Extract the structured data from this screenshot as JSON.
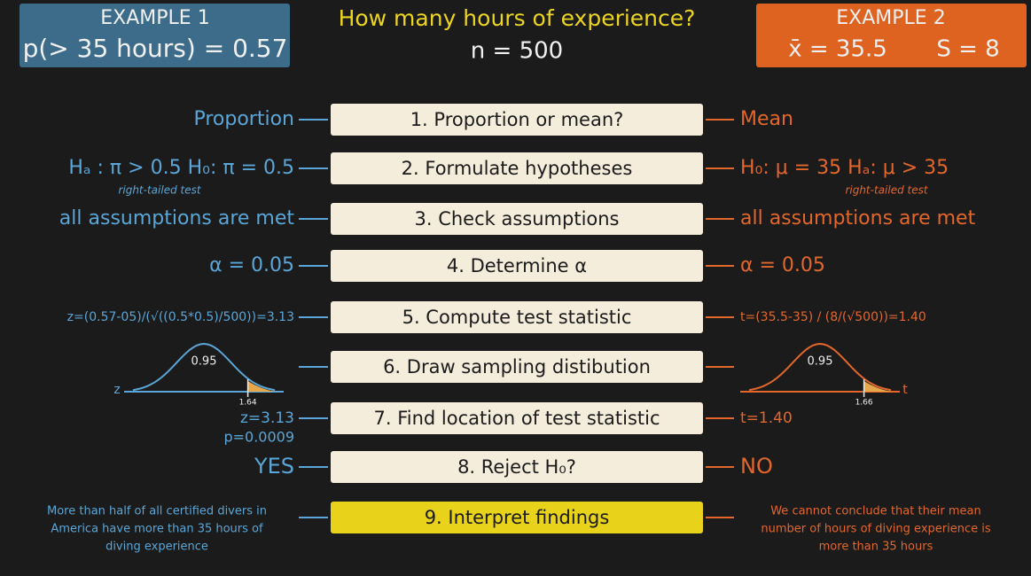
{
  "example1": {
    "label": "EXAMPLE 1",
    "value": "p(> 35 hours) = 0.57"
  },
  "title": {
    "question": "How many hours of experience?",
    "n": "n = 500"
  },
  "example2": {
    "label": "EXAMPLE 2",
    "mean": "x̄ = 35.5",
    "sd": "S = 8"
  },
  "steps": [
    {
      "label": "1. Proportion or mean?",
      "left": "Proportion",
      "right": "Mean"
    },
    {
      "label": "2. Formulate hypotheses",
      "left": "Hₐ : π > 0.5   H₀: π = 0.5",
      "left_note": "right-tailed test",
      "right": "H₀: μ = 35   Hₐ: μ > 35",
      "right_note": "right-tailed test"
    },
    {
      "label": "3. Check assumptions",
      "left": "all assumptions are met",
      "right": "all assumptions are met"
    },
    {
      "label": "4. Determine α",
      "left": "α = 0.05",
      "right": "α = 0.05"
    },
    {
      "label": "5. Compute test statistic",
      "left": "z=(0.57-05)/(√((0.5*0.5)/500))=3.13",
      "right": "t=(35.5-35) / (8/(√500))=1.40"
    },
    {
      "label": "6. Draw sampling distibution",
      "left_dist": {
        "area": "0.95",
        "critical": "1.64",
        "axis": "z"
      },
      "right_dist": {
        "area": "0.95",
        "critical": "1.66",
        "axis": "t"
      }
    },
    {
      "label": "7. Find location of test statistic",
      "left": [
        "z=3.13",
        "p=0.0009"
      ],
      "right": "t=1.40"
    },
    {
      "label": "8. Reject H₀?",
      "left": "YES",
      "right": "NO"
    },
    {
      "label": "9. Interpret findings",
      "left": [
        "More than half of all certified divers in",
        "America have more than 35 hours of",
        "diving experience"
      ],
      "right": [
        "We cannot conclude that their mean",
        "number of hours of diving experience is",
        "more than 35 hours"
      ]
    }
  ]
}
